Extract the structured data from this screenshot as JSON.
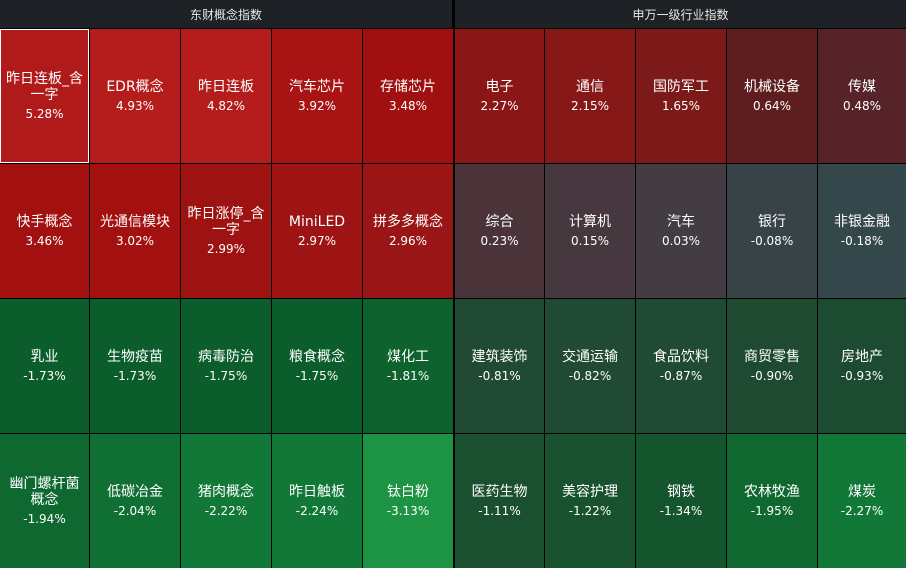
{
  "sections": {
    "left_title": "东财概念指数",
    "right_title": "申万一级行业指数"
  },
  "left_cells": [
    {
      "name": "昨日连板_含一字",
      "pct": "5.28%",
      "color": "#b01a1a",
      "selected": true
    },
    {
      "name": "EDR概念",
      "pct": "4.93%",
      "color": "#b51c1c"
    },
    {
      "name": "昨日连板",
      "pct": "4.82%",
      "color": "#b51c1c"
    },
    {
      "name": "汽车芯片",
      "pct": "3.92%",
      "color": "#a81414"
    },
    {
      "name": "存储芯片",
      "pct": "3.48%",
      "color": "#a01010"
    },
    {
      "name": "快手概念",
      "pct": "3.46%",
      "color": "#a31010"
    },
    {
      "name": "光通信模块",
      "pct": "3.02%",
      "color": "#a31010"
    },
    {
      "name": "昨日涨停_含一字",
      "pct": "2.99%",
      "color": "#9e1212"
    },
    {
      "name": "MiniLED",
      "pct": "2.97%",
      "color": "#9e1414"
    },
    {
      "name": "拼多多概念",
      "pct": "2.96%",
      "color": "#9a1616"
    },
    {
      "name": "乳业",
      "pct": "-1.73%",
      "color": "#0b5e2c"
    },
    {
      "name": "生物疫苗",
      "pct": "-1.73%",
      "color": "#0b5e2c"
    },
    {
      "name": "病毒防治",
      "pct": "-1.75%",
      "color": "#0b5e2c"
    },
    {
      "name": "粮食概念",
      "pct": "-1.75%",
      "color": "#0b5e2c"
    },
    {
      "name": "煤化工",
      "pct": "-1.81%",
      "color": "#0d622e"
    },
    {
      "name": "幽门螺杆菌概念",
      "pct": "-1.94%",
      "color": "#0e6830"
    },
    {
      "name": "低碳冶金",
      "pct": "-2.04%",
      "color": "#107034"
    },
    {
      "name": "猪肉概念",
      "pct": "-2.22%",
      "color": "#127838"
    },
    {
      "name": "昨日触板",
      "pct": "-2.24%",
      "color": "#127838"
    },
    {
      "name": "钛白粉",
      "pct": "-3.13%",
      "color": "#1c9444"
    }
  ],
  "right_cells": [
    {
      "name": "电子",
      "pct": "2.27%",
      "color": "#8a1616"
    },
    {
      "name": "通信",
      "pct": "2.15%",
      "color": "#871818"
    },
    {
      "name": "国防军工",
      "pct": "1.65%",
      "color": "#7c1a1a"
    },
    {
      "name": "机械设备",
      "pct": "0.64%",
      "color": "#5e1e20"
    },
    {
      "name": "传媒",
      "pct": "0.48%",
      "color": "#562428"
    },
    {
      "name": "综合",
      "pct": "0.23%",
      "color": "#4a343a"
    },
    {
      "name": "计算机",
      "pct": "0.15%",
      "color": "#473840"
    },
    {
      "name": "汽车",
      "pct": "0.03%",
      "color": "#433c42"
    },
    {
      "name": "银行",
      "pct": "-0.08%",
      "color": "#384348"
    },
    {
      "name": "非银金融",
      "pct": "-0.18%",
      "color": "#34474a"
    },
    {
      "name": "建筑装饰",
      "pct": "-0.81%",
      "color": "#204a34"
    },
    {
      "name": "交通运输",
      "pct": "-0.82%",
      "color": "#204a34"
    },
    {
      "name": "食品饮料",
      "pct": "-0.87%",
      "color": "#1f4a33"
    },
    {
      "name": "商贸零售",
      "pct": "-0.90%",
      "color": "#1e4a32"
    },
    {
      "name": "房地产",
      "pct": "-0.93%",
      "color": "#1d4b31"
    },
    {
      "name": "医药生物",
      "pct": "-1.11%",
      "color": "#1a4f30"
    },
    {
      "name": "美容护理",
      "pct": "-1.22%",
      "color": "#18522f"
    },
    {
      "name": "钢铁",
      "pct": "-1.34%",
      "color": "#15552e"
    },
    {
      "name": "农林牧渔",
      "pct": "-1.95%",
      "color": "#0e6830"
    },
    {
      "name": "煤炭",
      "pct": "-2.27%",
      "color": "#127838"
    }
  ]
}
